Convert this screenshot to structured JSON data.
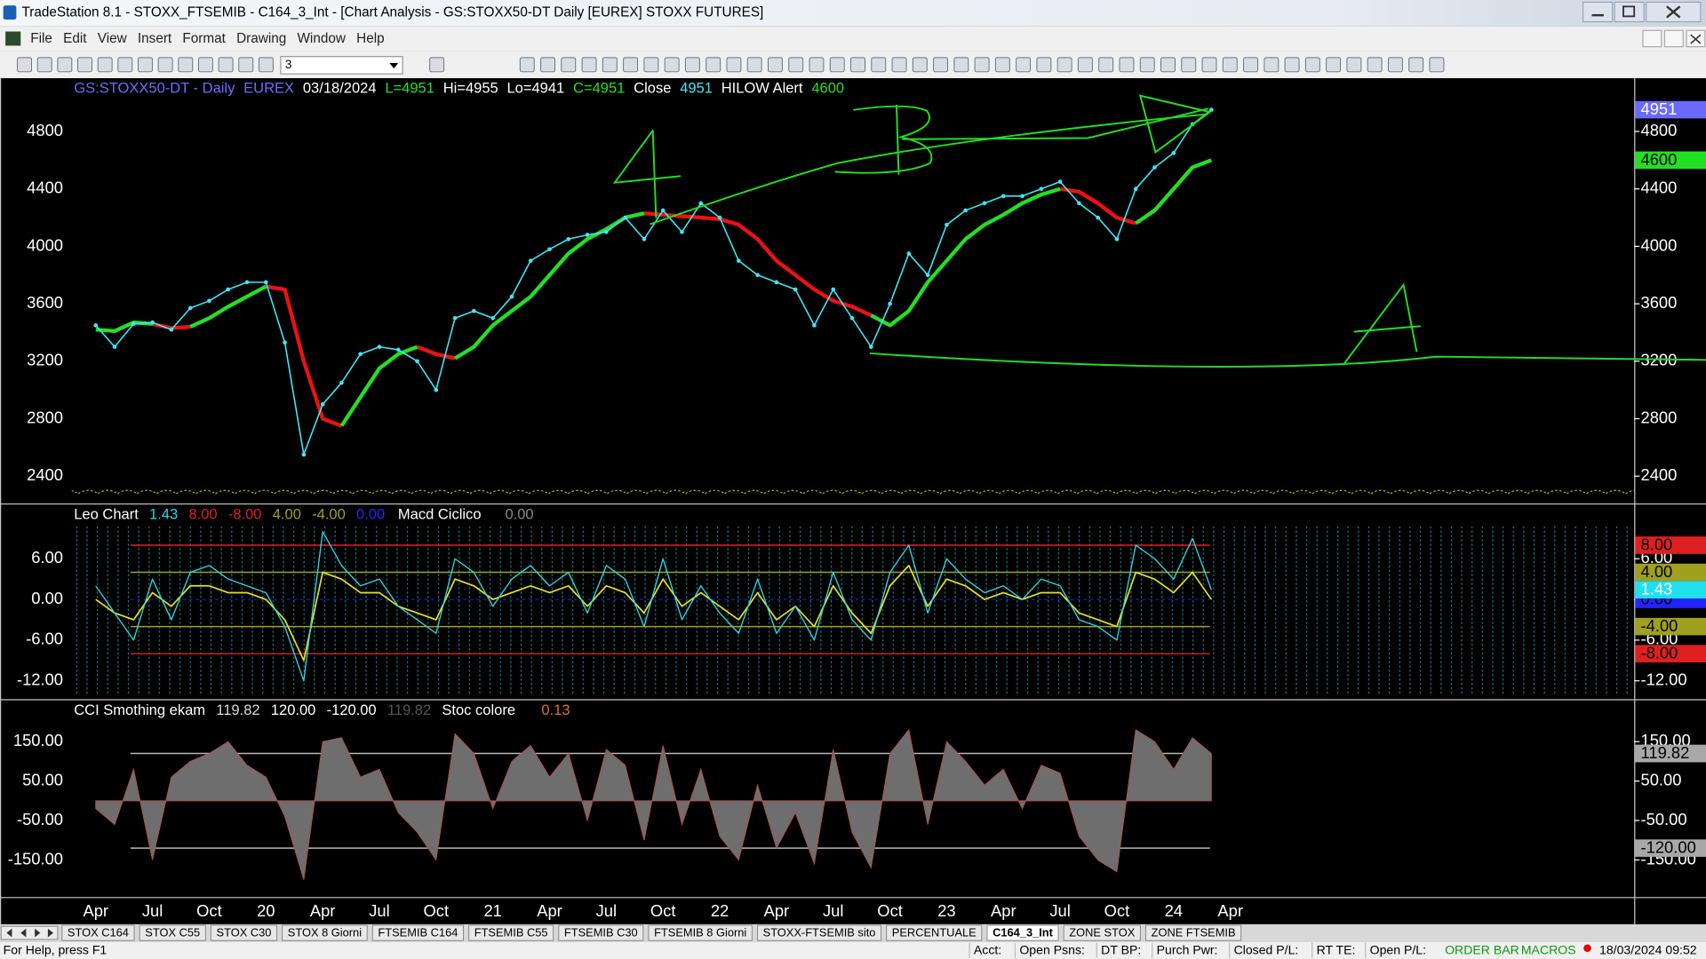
{
  "window": {
    "title": "TradeStation 8.1 - STOXX_FTSEMIB - C164_3_Int - [Chart Analysis - GS:STOXX50-DT  Daily  [EUREX] STOXX FUTURES]",
    "menu": [
      "File",
      "Edit",
      "View",
      "Insert",
      "Format",
      "Drawing",
      "Window",
      "Help"
    ],
    "toolbar_combo": "3"
  },
  "time_axis": {
    "categories": [
      "Apr",
      null,
      null,
      "Jul",
      null,
      null,
      "Oct",
      null,
      null,
      "20",
      null,
      null,
      "Apr",
      null,
      null,
      "Jul",
      null,
      null,
      "Oct",
      null,
      null,
      "21",
      null,
      null,
      "Apr",
      null,
      null,
      "Jul",
      null,
      null,
      "Oct",
      null,
      null,
      "22",
      null,
      null,
      "Apr",
      null,
      null,
      "Jul",
      null,
      null,
      "Oct",
      null,
      null,
      "23",
      null,
      null,
      "Apr",
      null,
      null,
      "Jul",
      null,
      null,
      "Oct",
      null,
      null,
      "24",
      null,
      null,
      "Apr"
    ]
  },
  "chart_data": [
    {
      "type": "line",
      "header": [
        {
          "text": "GS:STOXX50-DT - Daily",
          "color": "#6b6bff"
        },
        {
          "text": "EUREX",
          "color": "#6b6bff"
        },
        {
          "text": "03/18/2024",
          "color": "#ffffff"
        },
        {
          "text": "L=4951",
          "color": "#22e022"
        },
        {
          "text": "Hi=4955",
          "color": "#ffffff"
        },
        {
          "text": "Lo=4941",
          "color": "#ffffff"
        },
        {
          "text": "C=4951",
          "color": "#22e022"
        }
      ],
      "series": [
        {
          "name": "Close",
          "color": "#3ee6f5",
          "tag_color": "#6a6aff",
          "values": [
            3450,
            3300,
            3460,
            3470,
            3420,
            3570,
            3620,
            3700,
            3750,
            3750,
            3330,
            2550,
            2900,
            3050,
            3250,
            3300,
            3280,
            3200,
            3000,
            3500,
            3550,
            3500,
            3650,
            3900,
            3980,
            4050,
            4080,
            4100,
            4200,
            4050,
            4250,
            4100,
            4300,
            4200,
            3900,
            3800,
            3750,
            3700,
            3450,
            3700,
            3500,
            3300,
            3600,
            3950,
            3800,
            4150,
            4250,
            4300,
            4350,
            4350,
            4400,
            4450,
            4300,
            4200,
            4050,
            4400,
            4550,
            4650,
            4850,
            4951,
            null
          ]
        },
        {
          "name": "HILOW Alert",
          "color": "#22e022",
          "tag_color": "#22e022",
          "values": [
            3420,
            3410,
            3470,
            3460,
            null,
            3440,
            3500,
            3580,
            3650,
            3720,
            null,
            null,
            null,
            2750,
            2950,
            3150,
            3250,
            3300,
            null,
            3220,
            3300,
            3450,
            3550,
            3650,
            3800,
            3950,
            4050,
            4120,
            4200,
            4230,
            null,
            null,
            null,
            null,
            null,
            null,
            null,
            null,
            null,
            null,
            null,
            3520,
            3450,
            3550,
            3750,
            3900,
            4050,
            4150,
            4220,
            4300,
            4360,
            4400,
            null,
            null,
            null,
            4160,
            4250,
            4400,
            4550,
            4600,
            null
          ]
        },
        {
          "color": "#ee1111",
          "values": [
            null,
            null,
            null,
            3460,
            3430,
            3440,
            null,
            null,
            null,
            3720,
            3700,
            3200,
            2800,
            2750,
            null,
            null,
            null,
            3300,
            3250,
            3220,
            null,
            null,
            null,
            null,
            null,
            null,
            null,
            null,
            null,
            4230,
            4220,
            4210,
            4200,
            4190,
            4150,
            4050,
            3900,
            3800,
            3700,
            3620,
            3580,
            3520,
            null,
            null,
            null,
            null,
            null,
            null,
            null,
            null,
            null,
            4400,
            4380,
            4300,
            4200,
            4160,
            null,
            null,
            null,
            null,
            null
          ]
        }
      ],
      "ylim": [
        2210,
        5170
      ],
      "yticks": [
        2400,
        2800,
        3200,
        3600,
        4000,
        4400,
        4800
      ]
    },
    {
      "type": "line",
      "title": "Leo Chart",
      "series": [
        {
          "color": "#2fd5e6",
          "tag_color": "#20e0f0",
          "values": [
            2,
            -2,
            -6,
            3,
            -3,
            4,
            5,
            3,
            2,
            1,
            -4,
            -12,
            10,
            5,
            2,
            3,
            -1,
            -3,
            -5,
            6,
            4,
            -1,
            3,
            5,
            2,
            4,
            -2,
            5,
            3,
            -4,
            6,
            -3,
            2,
            -2,
            -5,
            3,
            -5,
            -1,
            -6,
            4,
            -3,
            -6,
            4,
            8,
            -2,
            6,
            3,
            1,
            2,
            0,
            3,
            2,
            -3,
            -4,
            -6,
            8,
            6,
            3,
            9,
            1.43,
            null
          ]
        },
        {
          "name": "Macd Ciclico",
          "color": "#e8e020",
          "readout": "0.00",
          "values": [
            0,
            -2,
            -3,
            1,
            -1,
            2,
            2,
            1,
            1,
            0,
            -3,
            -9,
            4,
            3,
            1,
            1,
            -1,
            -2,
            -3,
            3,
            2,
            0,
            1,
            2,
            1,
            2,
            -1,
            2,
            1,
            -2,
            3,
            -1,
            1,
            -1,
            -3,
            1,
            -3,
            -1,
            -4,
            2,
            -2,
            -5,
            2,
            5,
            -1,
            3,
            2,
            0,
            1,
            0,
            1,
            1,
            -2,
            -3,
            -4,
            4,
            3,
            1,
            4,
            0,
            null
          ]
        }
      ],
      "levels": [
        {
          "value": 8,
          "label": "8.00",
          "color": "#e02020"
        },
        {
          "value": -8,
          "label": "-8.00",
          "color": "#e02020"
        },
        {
          "value": 4,
          "label": "4.00",
          "color": "#a0a020"
        },
        {
          "value": -4,
          "label": "-4.00",
          "color": "#a0a020"
        },
        {
          "value": 0,
          "label": "0.00",
          "color": "#2323ff"
        }
      ],
      "ylim": [
        -14.7,
        14
      ],
      "yticks": [
        {
          "value": 6,
          "label": "6.00"
        },
        {
          "value": 0,
          "label": "0.00"
        },
        {
          "value": -6,
          "label": "-6.00"
        },
        {
          "value": -12,
          "label": "-12.00"
        }
      ]
    },
    {
      "type": "area",
      "title": "CCI Smothing ekam",
      "series": [
        {
          "color": "#6e6e6e",
          "tag_color": "#a8a8a8",
          "values": [
            -20,
            -60,
            80,
            -150,
            60,
            100,
            120,
            150,
            90,
            60,
            -40,
            -200,
            150,
            160,
            60,
            80,
            -30,
            -80,
            -150,
            170,
            120,
            -20,
            100,
            140,
            60,
            120,
            -50,
            130,
            90,
            -100,
            140,
            -60,
            80,
            -90,
            -150,
            40,
            -120,
            -30,
            -160,
            130,
            -80,
            -170,
            120,
            180,
            -60,
            150,
            100,
            40,
            80,
            -20,
            90,
            70,
            -90,
            -150,
            -180,
            180,
            150,
            80,
            160,
            119.82,
            null
          ]
        }
      ],
      "levels": [
        {
          "value": 120,
          "label": "120.00",
          "color": "#b8b8b8"
        },
        {
          "value": -120,
          "label": "-120.00",
          "color": "#b8b8b8"
        }
      ],
      "indicator": {
        "name": "Stoc colore",
        "readout": "0.13",
        "color": "#e07020"
      },
      "ylim": [
        -244,
        255
      ],
      "yticks": [
        {
          "value": 150,
          "label": "150.00"
        },
        {
          "value": 50,
          "label": "50.00"
        },
        {
          "value": -50,
          "label": "-50.00"
        },
        {
          "value": -150,
          "label": "-150.00"
        }
      ]
    }
  ],
  "tabs": {
    "items": [
      "STOX C164",
      "STOX C55",
      "STOX  C30",
      "STOX  8 Giorni",
      "FTSEMIB C164",
      "FTSEMIB C55",
      "FTSEMIB C30",
      "FTSEMIB  8 Giorni",
      "STOXX-FTSEMIB sito",
      "PERCENTUALE",
      "C164_3_Int",
      "ZONE STOX",
      "ZONE FTSEMIB"
    ],
    "active": "C164_3_Int"
  },
  "status_bar": {
    "help": "For Help, press F1",
    "fields": [
      "Acct:",
      "Open Psns:",
      "DT BP:",
      "Purch Pwr:",
      "Closed P/L:",
      "RT TE:",
      "Open P/L:"
    ],
    "indicators": [
      "ORDER BAR",
      "MACROS"
    ],
    "datetime": "18/03/2024 09:52"
  }
}
